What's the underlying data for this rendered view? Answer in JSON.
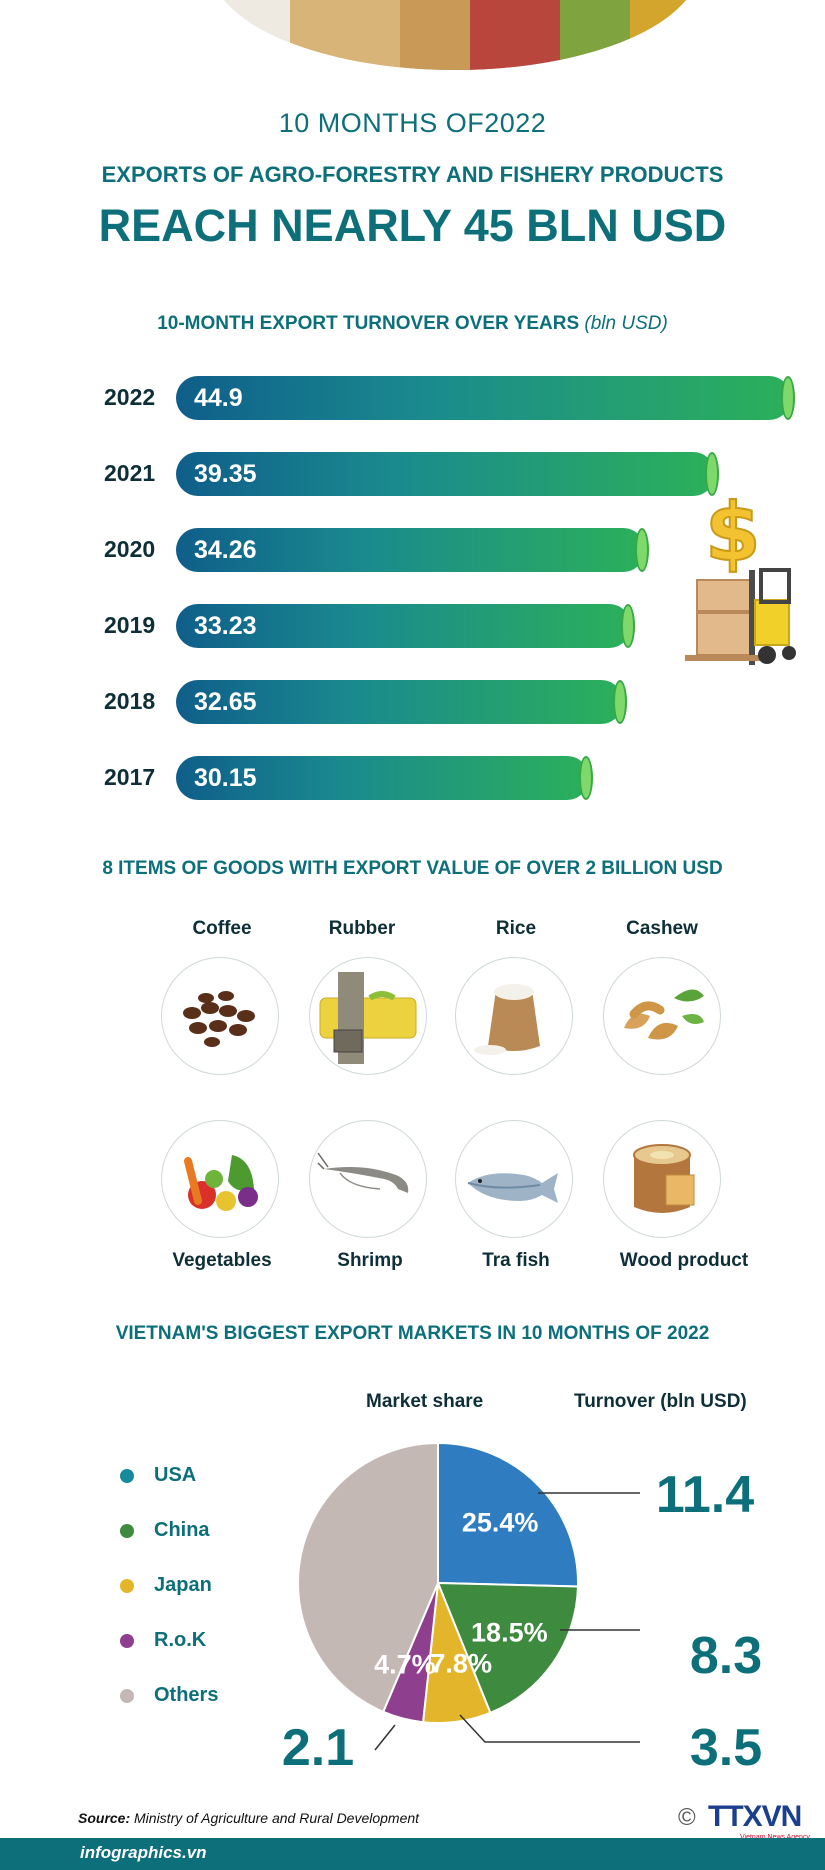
{
  "header": {
    "subtitle": "10 MONTHS OF2022",
    "line1": "EXPORTS OF AGRO-FORESTRY AND FISHERY PRODUCTS",
    "line2": "REACH NEARLY 45 BLN USD"
  },
  "bar_section": {
    "title": "10-MONTH EXPORT TURNOVER OVER YEARS",
    "unit": "(bln USD)"
  },
  "chart_data": [
    {
      "type": "bar",
      "orientation": "horizontal",
      "title": "10-MONTH EXPORT TURNOVER OVER YEARS",
      "unit": "bln USD",
      "categories": [
        "2022",
        "2021",
        "2020",
        "2019",
        "2018",
        "2017"
      ],
      "values": [
        44.9,
        39.35,
        34.26,
        33.23,
        32.65,
        30.15
      ],
      "value_labels": [
        "44.9",
        "39.35",
        "34.26",
        "33.23",
        "32.65",
        "30.15"
      ]
    },
    {
      "type": "pie",
      "title": "VIETNAM'S BIGGEST EXPORT MARKETS IN 10 MONTHS OF 2022",
      "categories": [
        "USA",
        "China",
        "Japan",
        "R.o.K",
        "Others"
      ],
      "values": [
        25.4,
        18.5,
        7.8,
        4.7,
        43.6
      ],
      "slice_labels": [
        "25.4%",
        "18.5%",
        "7.8%",
        "4.7%",
        ""
      ],
      "turnover_bln_usd": [
        "11.4",
        "8.3",
        "3.5",
        "2.1"
      ],
      "colors": [
        "#2f7cc0",
        "#3e8a3e",
        "#e2b52a",
        "#8e3f8e",
        "#c3b8b3"
      ]
    }
  ],
  "goods_section": {
    "title": "8 ITEMS OF GOODS WITH EXPORT VALUE OF OVER  2 BILLION USD",
    "items": [
      {
        "label": "Coffee",
        "icon": "coffee-beans-icon"
      },
      {
        "label": "Rubber",
        "icon": "rubber-icon"
      },
      {
        "label": "Rice",
        "icon": "rice-sack-icon"
      },
      {
        "label": "Cashew",
        "icon": "cashew-icon"
      },
      {
        "label": "Vegetables",
        "icon": "vegetables-icon"
      },
      {
        "label": "Shrimp",
        "icon": "shrimp-icon"
      },
      {
        "label": "Tra fish",
        "icon": "fish-icon"
      },
      {
        "label": "Wood product",
        "icon": "wood-log-icon"
      }
    ]
  },
  "markets_section": {
    "title": "VIETNAM'S BIGGEST EXPORT MARKETS IN 10 MONTHS OF 2022",
    "col_share": "Market share",
    "col_turnover": "Turnover (bln USD)",
    "legend": [
      "USA",
      "China",
      "Japan",
      "R.o.K",
      "Others"
    ]
  },
  "footer": {
    "source_label": "Source:",
    "source_text": " Ministry of Agriculture and Rural Development",
    "site": "infographics.vn",
    "brand": "TTXVN",
    "brand_sub": "Vietnam News Agency",
    "copyright": "©"
  }
}
